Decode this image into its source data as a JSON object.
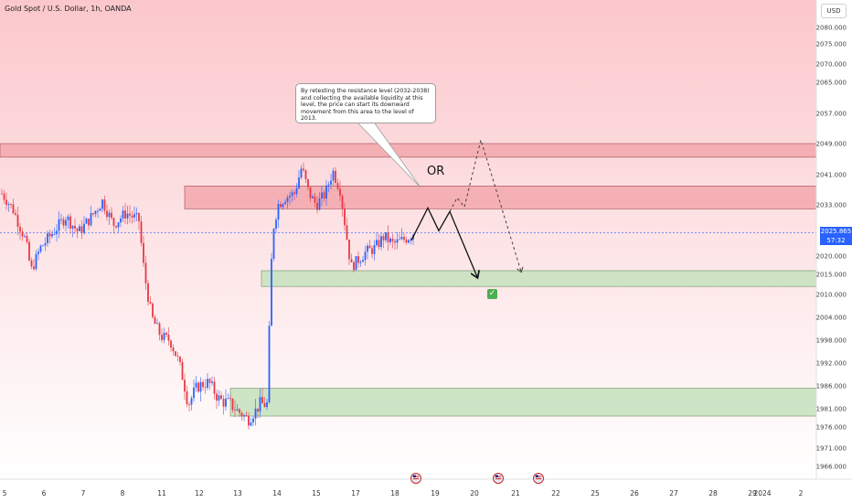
{
  "header": {
    "symbol_title": "Gold Spot / U.S. Dollar, 1h, OANDA",
    "currency": "USD"
  },
  "price_tag": {
    "price": "2025.865",
    "countdown": "57:32"
  },
  "annotation": {
    "text": "By retesting the resistance level (2032-2038) and collecting the available liquidity at this level, the price can start its downward movement from this area to the level of 2013.",
    "or_label": "OR",
    "check_icon": "check-mark-icon"
  },
  "colors": {
    "up": "#2962ff",
    "down": "#e53945",
    "resistance": "#f2a0a6",
    "support": "#c8e2c0",
    "current_line": "#2962ff"
  },
  "chart_data": {
    "type": "candlestick",
    "symbol": "XAU/USD",
    "timeframe": "1h",
    "y_ticks": [
      2080.0,
      2075.0,
      2070.0,
      2065.0,
      2057.0,
      2049.0,
      2041.0,
      2033.0,
      2020.0,
      2015.0,
      2010.0,
      2004.0,
      1998.0,
      1992.0,
      1986.0,
      1981.0,
      1976.0,
      1971.0,
      1966.0
    ],
    "x_labels": [
      "5",
      "6",
      "7",
      "8",
      "11",
      "12",
      "13",
      "14",
      "15",
      "17",
      "18",
      "19",
      "20",
      "21",
      "22",
      "25",
      "26",
      "27",
      "28",
      "29",
      "2024",
      "2"
    ],
    "current_price": 2025.865,
    "zones": [
      {
        "type": "resistance",
        "from": 2045.5,
        "to": 2049.0
      },
      {
        "type": "resistance",
        "from": 2032.0,
        "to": 2038.0
      },
      {
        "type": "support",
        "from": 2012.0,
        "to": 2016.0
      },
      {
        "type": "support",
        "from": 1979.0,
        "to": 1985.5
      }
    ],
    "price_path_levels": [
      2024.0,
      2032.0,
      2013.0
    ],
    "target_level": 2013.0
  }
}
